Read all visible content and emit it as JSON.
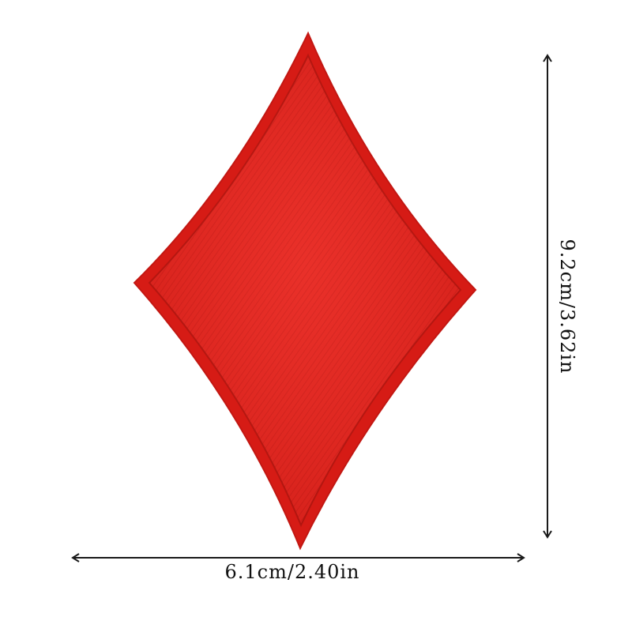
{
  "product": {
    "shape": "diamond-suit patch",
    "color": "#e8231c",
    "border_color": "#c91a14"
  },
  "dimensions": {
    "width_label": "6.1cm/2.40in",
    "height_label": "9.2cm/3.62in"
  },
  "colors": {
    "arrow": "#1a1a1a",
    "background": "#ffffff"
  }
}
